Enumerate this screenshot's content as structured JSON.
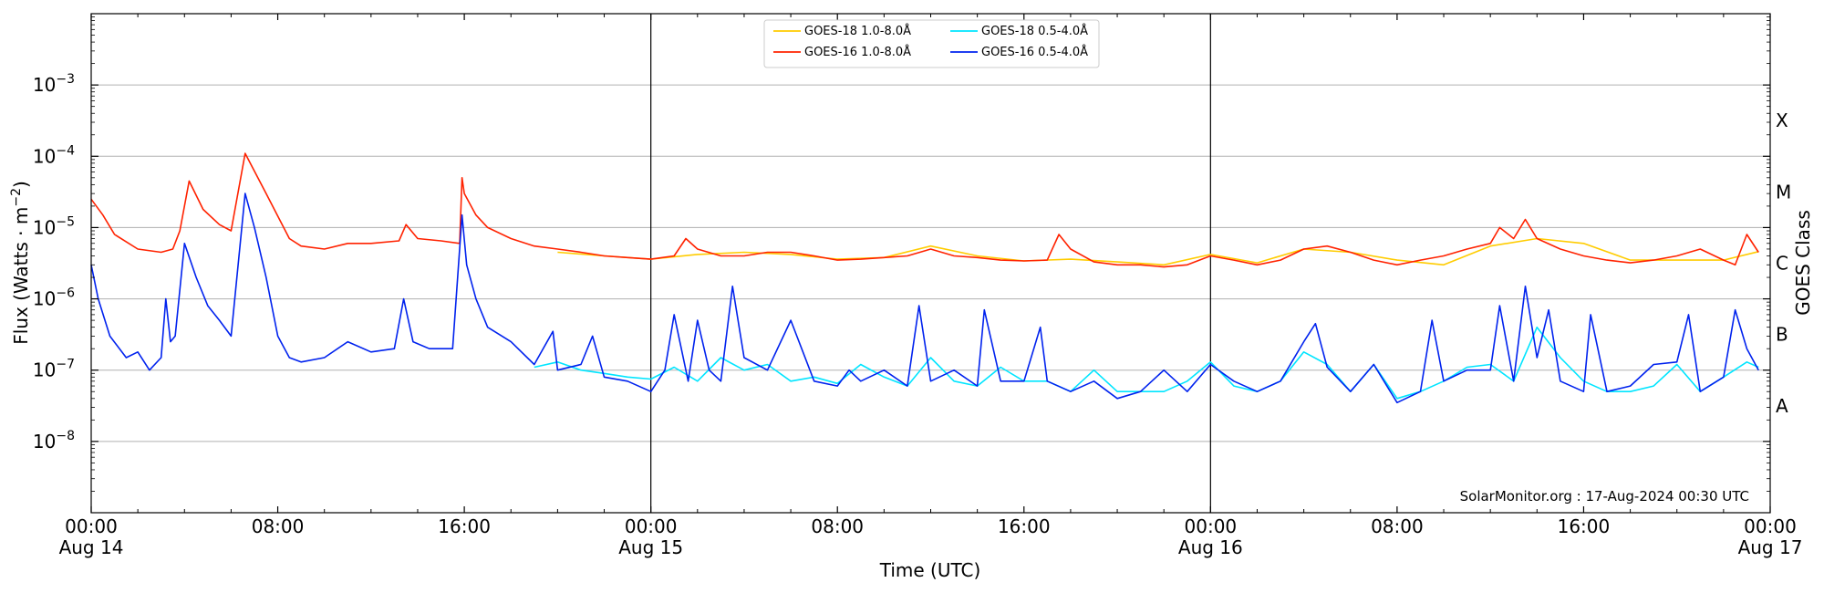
{
  "chart_data": {
    "type": "line",
    "xlabel": "Time (UTC)",
    "ylabel_main": "Flux (Watts · m",
    "ylabel_sup": "−2",
    "ylabel_close": ")",
    "ylabel_right": "GOES Class",
    "x_range_hours": [
      0,
      72
    ],
    "x_ticks": [
      {
        "hour": 0,
        "time": "00:00",
        "date": "Aug 14"
      },
      {
        "hour": 8,
        "time": "08:00",
        "date": ""
      },
      {
        "hour": 16,
        "time": "16:00",
        "date": ""
      },
      {
        "hour": 24,
        "time": "00:00",
        "date": "Aug 15"
      },
      {
        "hour": 32,
        "time": "08:00",
        "date": ""
      },
      {
        "hour": 40,
        "time": "16:00",
        "date": ""
      },
      {
        "hour": 48,
        "time": "00:00",
        "date": "Aug 16"
      },
      {
        "hour": 56,
        "time": "08:00",
        "date": ""
      },
      {
        "hour": 64,
        "time": "16:00",
        "date": ""
      },
      {
        "hour": 72,
        "time": "00:00",
        "date": "Aug 17"
      }
    ],
    "y_log_range": [
      -9,
      -2
    ],
    "y_ticks": [
      {
        "exp": -8,
        "base": "10",
        "sup": "−8"
      },
      {
        "exp": -7,
        "base": "10",
        "sup": "−7"
      },
      {
        "exp": -6,
        "base": "10",
        "sup": "−6"
      },
      {
        "exp": -5,
        "base": "10",
        "sup": "−5"
      },
      {
        "exp": -4,
        "base": "10",
        "sup": "−4"
      },
      {
        "exp": -3,
        "base": "10",
        "sup": "−3"
      }
    ],
    "goes_classes": [
      {
        "label": "A",
        "exp": -7.5
      },
      {
        "label": "B",
        "exp": -6.5
      },
      {
        "label": "C",
        "exp": -5.5
      },
      {
        "label": "M",
        "exp": -4.5
      },
      {
        "label": "X",
        "exp": -3.5
      }
    ],
    "day_separators_hours": [
      24,
      48
    ],
    "grid": "horizontal",
    "legend_position": "top-center",
    "credit": "SolarMonitor.org : 17-Aug-2024 00:30 UTC",
    "series": [
      {
        "name": "GOES-18 1.0-8.0Å",
        "color": "#ffcc00",
        "x": [
          20,
          22,
          24,
          26,
          28,
          30,
          32,
          34,
          36,
          38,
          40,
          42,
          44,
          46,
          48,
          50,
          52,
          54,
          56,
          58,
          60,
          62,
          64,
          66,
          68,
          70,
          71.5
        ],
        "y": [
          4.5e-06,
          4e-06,
          3.6e-06,
          4.2e-06,
          4.5e-06,
          4.2e-06,
          3.6e-06,
          3.8e-06,
          5.5e-06,
          4e-06,
          3.4e-06,
          3.6e-06,
          3.3e-06,
          3e-06,
          4.2e-06,
          3.2e-06,
          5e-06,
          4.5e-06,
          3.5e-06,
          3e-06,
          5.5e-06,
          7e-06,
          6e-06,
          3.5e-06,
          3.5e-06,
          3.5e-06,
          4.6e-06
        ]
      },
      {
        "name": "GOES-16 1.0-8.0Å",
        "color": "#ff2200",
        "x": [
          0,
          0.5,
          1,
          2,
          3,
          3.5,
          3.8,
          4.2,
          4.8,
          5.5,
          6,
          6.6,
          7.5,
          8.5,
          9,
          10,
          11,
          12,
          13.2,
          13.5,
          14,
          15,
          15.8,
          15.9,
          16,
          16.5,
          17,
          18,
          19,
          20,
          21,
          22,
          23,
          24,
          25,
          25.5,
          26,
          27,
          28,
          29,
          30,
          31,
          32,
          33,
          34,
          35,
          36,
          37,
          38,
          39,
          40,
          41,
          41.5,
          42,
          43,
          44,
          45,
          46,
          47,
          48,
          49,
          50,
          51,
          52,
          53,
          54,
          55,
          56,
          57,
          58,
          59,
          60,
          60.4,
          61,
          61.5,
          62,
          63,
          64,
          65,
          66,
          67,
          68,
          69,
          70,
          70.5,
          71,
          71.5
        ],
        "y": [
          2.5e-05,
          1.5e-05,
          8e-06,
          5e-06,
          4.5e-06,
          5e-06,
          9e-06,
          4.5e-05,
          1.8e-05,
          1.1e-05,
          9e-06,
          0.00011,
          3e-05,
          7e-06,
          5.5e-06,
          5e-06,
          6e-06,
          6e-06,
          6.5e-06,
          1.1e-05,
          7e-06,
          6.5e-06,
          6e-06,
          5e-05,
          3e-05,
          1.5e-05,
          1e-05,
          7e-06,
          5.5e-06,
          5e-06,
          4.5e-06,
          4e-06,
          3.8e-06,
          3.6e-06,
          4e-06,
          7e-06,
          5e-06,
          4e-06,
          4e-06,
          4.5e-06,
          4.5e-06,
          4e-06,
          3.5e-06,
          3.6e-06,
          3.8e-06,
          4e-06,
          5e-06,
          4e-06,
          3.8e-06,
          3.5e-06,
          3.4e-06,
          3.5e-06,
          8e-06,
          5e-06,
          3.3e-06,
          3e-06,
          3e-06,
          2.8e-06,
          3e-06,
          4e-06,
          3.5e-06,
          3e-06,
          3.5e-06,
          5e-06,
          5.5e-06,
          4.5e-06,
          3.5e-06,
          3e-06,
          3.5e-06,
          4e-06,
          5e-06,
          6e-06,
          1e-05,
          7e-06,
          1.3e-05,
          7e-06,
          5e-06,
          4e-06,
          3.5e-06,
          3.2e-06,
          3.5e-06,
          4e-06,
          5e-06,
          3.5e-06,
          3e-06,
          8e-06,
          4.5e-06
        ]
      },
      {
        "name": "GOES-18 0.5-4.0Å",
        "color": "#00e5ff",
        "x": [
          19,
          20,
          21,
          22,
          23,
          24,
          25,
          26,
          27,
          28,
          29,
          30,
          31,
          32,
          33,
          34,
          35,
          36,
          37,
          38,
          39,
          40,
          41,
          42,
          43,
          44,
          45,
          46,
          47,
          48,
          49,
          50,
          51,
          52,
          53,
          54,
          55,
          56,
          57,
          58,
          59,
          60,
          61,
          62,
          63,
          64,
          65,
          66,
          67,
          68,
          69,
          70,
          71,
          71.5
        ],
        "y": [
          1.1e-07,
          1.3e-07,
          1e-07,
          9e-08,
          8e-08,
          7.5e-08,
          1.1e-07,
          7e-08,
          1.5e-07,
          1e-07,
          1.2e-07,
          7e-08,
          8e-08,
          6.5e-08,
          1.2e-07,
          8e-08,
          6e-08,
          1.5e-07,
          7e-08,
          6e-08,
          1.1e-07,
          7e-08,
          7e-08,
          5e-08,
          1e-07,
          5e-08,
          5e-08,
          5e-08,
          7e-08,
          1.3e-07,
          6e-08,
          5e-08,
          7e-08,
          1.8e-07,
          1.2e-07,
          5e-08,
          1.2e-07,
          4e-08,
          5e-08,
          7e-08,
          1.1e-07,
          1.2e-07,
          7e-08,
          4e-07,
          1.5e-07,
          7e-08,
          5e-08,
          5e-08,
          6e-08,
          1.2e-07,
          5e-08,
          8e-08,
          1.3e-07,
          1.1e-07
        ]
      },
      {
        "name": "GOES-16 0.5-4.0Å",
        "color": "#0022ee",
        "x": [
          0,
          0.3,
          0.8,
          1.5,
          2,
          2.5,
          3,
          3.2,
          3.4,
          3.6,
          4,
          4.5,
          5,
          5.5,
          6,
          6.6,
          7,
          7.5,
          8,
          8.5,
          9,
          10,
          11,
          12,
          13,
          13.4,
          13.8,
          14.5,
          15,
          15.5,
          15.9,
          16.1,
          16.5,
          17,
          18,
          19,
          19.8,
          20,
          21,
          21.5,
          22,
          23,
          24,
          24.6,
          25,
          25.6,
          26,
          26.5,
          27,
          27.5,
          28,
          29,
          30,
          31,
          32,
          32.5,
          33,
          34,
          35,
          35.5,
          36,
          37,
          38,
          38.3,
          39,
          40,
          40.7,
          41,
          42,
          43,
          44,
          45,
          46,
          47,
          48,
          49,
          50,
          51,
          52,
          52.5,
          53,
          54,
          55,
          56,
          57,
          57.5,
          58,
          59,
          60,
          60.4,
          61,
          61.5,
          62,
          62.5,
          63,
          64,
          64.3,
          65,
          66,
          67,
          68,
          68.5,
          69,
          70,
          70.5,
          71,
          71.5
        ],
        "y": [
          3e-06,
          1e-06,
          3e-07,
          1.5e-07,
          1.8e-07,
          1e-07,
          1.5e-07,
          1e-06,
          2.5e-07,
          3e-07,
          6e-06,
          2e-06,
          8e-07,
          5e-07,
          3e-07,
          3e-05,
          1e-05,
          2e-06,
          3e-07,
          1.5e-07,
          1.3e-07,
          1.5e-07,
          2.5e-07,
          1.8e-07,
          2e-07,
          1e-06,
          2.5e-07,
          2e-07,
          2e-07,
          2e-07,
          1.5e-05,
          3e-06,
          1e-06,
          4e-07,
          2.5e-07,
          1.2e-07,
          3.5e-07,
          1e-07,
          1.2e-07,
          3e-07,
          8e-08,
          7e-08,
          5e-08,
          1e-07,
          6e-07,
          7e-08,
          5e-07,
          1e-07,
          7e-08,
          1.5e-06,
          1.5e-07,
          1e-07,
          5e-07,
          7e-08,
          6e-08,
          1e-07,
          7e-08,
          1e-07,
          6e-08,
          8e-07,
          7e-08,
          1e-07,
          6e-08,
          7e-07,
          7e-08,
          7e-08,
          4e-07,
          7e-08,
          5e-08,
          7e-08,
          4e-08,
          5e-08,
          1e-07,
          5e-08,
          1.2e-07,
          7e-08,
          5e-08,
          7e-08,
          2.5e-07,
          4.5e-07,
          1.1e-07,
          5e-08,
          1.2e-07,
          3.5e-08,
          5e-08,
          5e-07,
          7e-08,
          1e-07,
          1e-07,
          8e-07,
          7e-08,
          1.5e-06,
          1.5e-07,
          7e-07,
          7e-08,
          5e-08,
          6e-07,
          5e-08,
          6e-08,
          1.2e-07,
          1.3e-07,
          6e-07,
          5e-08,
          8e-08,
          7e-07,
          2e-07,
          1e-07
        ]
      }
    ]
  }
}
